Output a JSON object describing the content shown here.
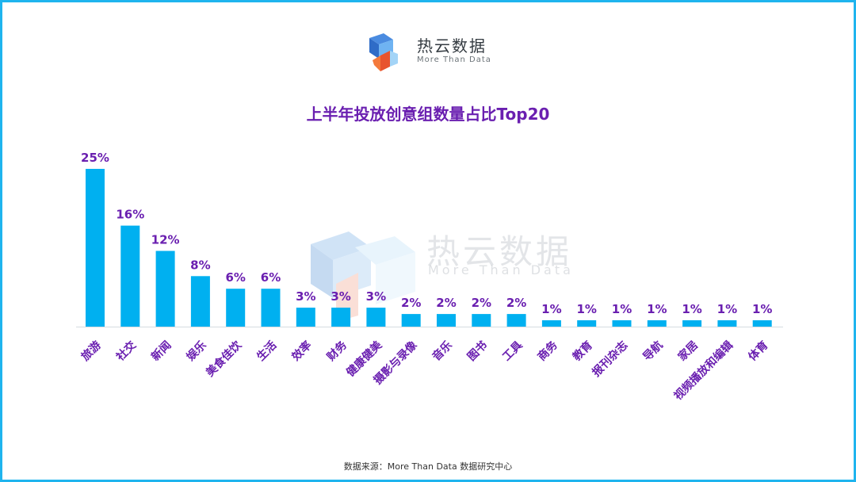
{
  "brand": {
    "name": "热云数据",
    "tagline": "More Than Data"
  },
  "watermark": {
    "name": "热云数据",
    "tagline": "More Than Data"
  },
  "colors": {
    "bar": "#00b0f0",
    "label": "#6a1fb0",
    "frame": "#1fb4ee"
  },
  "chart_data": {
    "type": "bar",
    "title": "上半年投放创意组数量占比Top20",
    "xlabel": "",
    "ylabel": "",
    "unit": "%",
    "ylim": [
      0,
      25
    ],
    "grid": false,
    "legend": "none",
    "categories": [
      "旅游",
      "社交",
      "新闻",
      "娱乐",
      "美食佳饮",
      "生活",
      "效率",
      "财务",
      "健康健美",
      "摄影与录像",
      "音乐",
      "图书",
      "工具",
      "商务",
      "教育",
      "报刊杂志",
      "导航",
      "家居",
      "视频播放和编辑",
      "体育"
    ],
    "values": [
      25,
      16,
      12,
      8,
      6,
      6,
      3,
      3,
      3,
      2,
      2,
      2,
      2,
      1,
      1,
      1,
      1,
      1,
      1,
      1
    ],
    "data_labels": [
      "25%",
      "16%",
      "12%",
      "8%",
      "6%",
      "6%",
      "3%",
      "3%",
      "3%",
      "2%",
      "2%",
      "2%",
      "2%",
      "1%",
      "1%",
      "1%",
      "1%",
      "1%",
      "1%",
      "1%"
    ]
  },
  "footer": {
    "source": "数据来源：More Than Data 数据研究中心"
  }
}
